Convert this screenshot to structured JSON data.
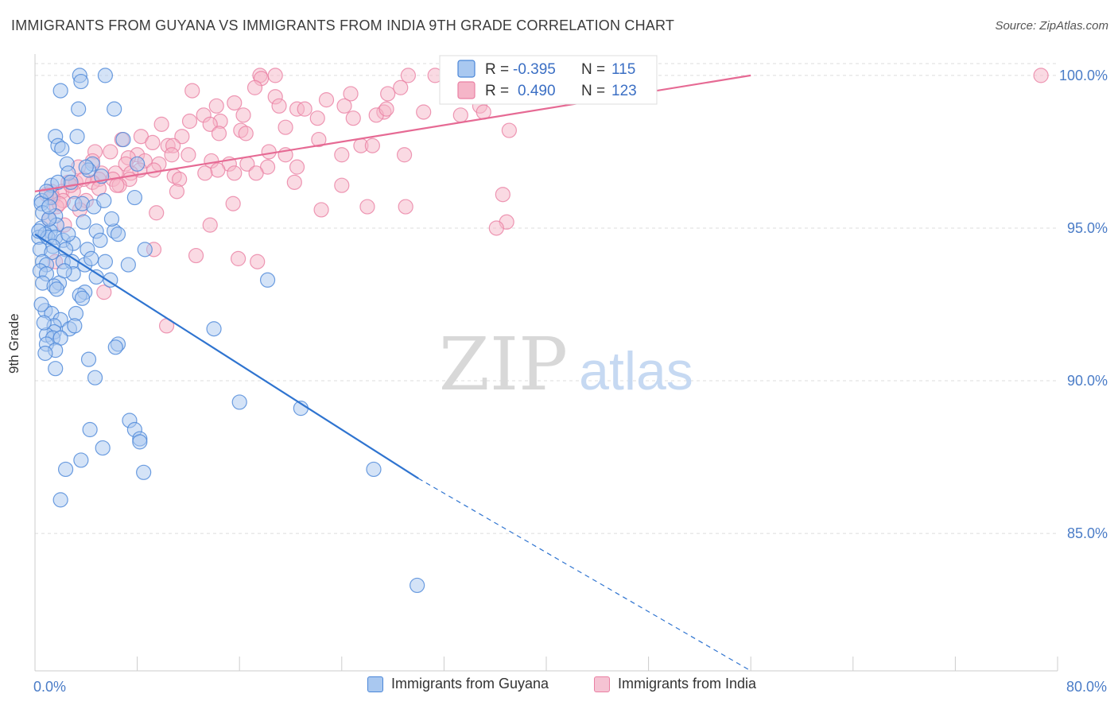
{
  "title": "IMMIGRANTS FROM GUYANA VS IMMIGRANTS FROM INDIA 9TH GRADE CORRELATION CHART",
  "source": "Source: ZipAtlas.com",
  "watermark": {
    "zip": "ZIP",
    "atlas": "atlas"
  },
  "colors": {
    "guyana_fill": "#a9c8f0",
    "guyana_stroke": "#4a86d8",
    "guyana_line": "#2f74d0",
    "india_fill": "#f5b5c8",
    "india_stroke": "#ea80a3",
    "india_line": "#e66a94",
    "grid": "#dddddd",
    "axis_text": "#4a7cc7"
  },
  "legend": {
    "rows": [
      {
        "r_label": "R =",
        "r_value": "-0.395",
        "n_label": "N =",
        "n_value": "115"
      },
      {
        "r_label": "R =",
        "r_value": "0.490",
        "n_label": "N =",
        "n_value": "123"
      }
    ]
  },
  "chart_data": {
    "type": "scatter",
    "title": "IMMIGRANTS FROM GUYANA VS IMMIGRANTS FROM INDIA 9TH GRADE CORRELATION CHART",
    "xlabel": "",
    "ylabel": "9th Grade",
    "xlim": [
      0,
      80
    ],
    "ylim": [
      80.5,
      100.7
    ],
    "x_tick_labels": [
      "0.0%",
      "80.0%"
    ],
    "y_ticks": [
      85,
      90,
      95,
      100
    ],
    "y_tick_labels": [
      "85.0%",
      "90.0%",
      "95.0%",
      "100.0%"
    ],
    "grid": true,
    "legend_position": "top-center",
    "series": [
      {
        "name": "Immigrants from Guyana",
        "r": -0.395,
        "n": 115,
        "trend": {
          "x": [
            0,
            30
          ],
          "y": [
            94.8,
            86.8
          ]
        },
        "trend_extension": {
          "x": [
            30,
            56
          ],
          "y": [
            86.8,
            80.5
          ]
        },
        "points": [
          [
            3.5,
            100.0
          ],
          [
            5.5,
            100.0
          ],
          [
            3.6,
            99.8
          ],
          [
            2.0,
            99.5
          ],
          [
            6.2,
            98.9
          ],
          [
            3.4,
            98.9
          ],
          [
            1.6,
            98.0
          ],
          [
            3.3,
            98.0
          ],
          [
            6.9,
            97.9
          ],
          [
            1.8,
            97.7
          ],
          [
            2.1,
            97.6
          ],
          [
            2.5,
            97.1
          ],
          [
            4.5,
            97.1
          ],
          [
            8.0,
            97.1
          ],
          [
            4.2,
            96.9
          ],
          [
            2.6,
            96.8
          ],
          [
            5.2,
            96.7
          ],
          [
            1.3,
            96.4
          ],
          [
            2.8,
            96.5
          ],
          [
            7.8,
            96.0
          ],
          [
            1.2,
            96.0
          ],
          [
            0.5,
            95.9
          ],
          [
            0.5,
            95.8
          ],
          [
            3.1,
            95.8
          ],
          [
            3.7,
            95.8
          ],
          [
            4.6,
            95.7
          ],
          [
            0.6,
            95.5
          ],
          [
            1.6,
            95.4
          ],
          [
            3.8,
            95.2
          ],
          [
            1.7,
            95.1
          ],
          [
            0.5,
            95.0
          ],
          [
            1.2,
            94.9
          ],
          [
            4.8,
            94.9
          ],
          [
            6.2,
            94.9
          ],
          [
            6.5,
            94.8
          ],
          [
            0.3,
            94.7
          ],
          [
            0.8,
            94.8
          ],
          [
            1.0,
            94.7
          ],
          [
            1.6,
            94.7
          ],
          [
            2.2,
            94.6
          ],
          [
            3.0,
            94.5
          ],
          [
            5.1,
            94.6
          ],
          [
            1.4,
            94.4
          ],
          [
            0.4,
            94.3
          ],
          [
            2.4,
            94.3
          ],
          [
            4.1,
            94.3
          ],
          [
            8.6,
            94.3
          ],
          [
            1.3,
            94.2
          ],
          [
            0.6,
            93.9
          ],
          [
            2.2,
            93.9
          ],
          [
            2.9,
            93.9
          ],
          [
            5.5,
            93.9
          ],
          [
            0.9,
            93.8
          ],
          [
            3.9,
            93.8
          ],
          [
            7.3,
            93.8
          ],
          [
            0.4,
            93.6
          ],
          [
            0.9,
            93.5
          ],
          [
            3.0,
            93.5
          ],
          [
            4.8,
            93.4
          ],
          [
            5.9,
            93.3
          ],
          [
            18.2,
            93.3
          ],
          [
            0.6,
            93.2
          ],
          [
            1.9,
            93.2
          ],
          [
            1.5,
            93.1
          ],
          [
            1.7,
            93.0
          ],
          [
            3.9,
            92.9
          ],
          [
            3.5,
            92.8
          ],
          [
            0.8,
            92.3
          ],
          [
            1.3,
            92.2
          ],
          [
            3.2,
            92.2
          ],
          [
            2.0,
            92.0
          ],
          [
            1.5,
            91.8
          ],
          [
            2.7,
            91.7
          ],
          [
            14.0,
            91.7
          ],
          [
            3.1,
            91.8
          ],
          [
            1.5,
            91.6
          ],
          [
            0.9,
            91.5
          ],
          [
            1.4,
            91.4
          ],
          [
            2.0,
            91.4
          ],
          [
            0.9,
            91.2
          ],
          [
            6.5,
            91.2
          ],
          [
            6.3,
            91.1
          ],
          [
            1.6,
            91.0
          ],
          [
            0.8,
            90.9
          ],
          [
            4.2,
            90.7
          ],
          [
            1.6,
            90.4
          ],
          [
            4.7,
            90.1
          ],
          [
            16.0,
            89.3
          ],
          [
            20.8,
            89.1
          ],
          [
            7.4,
            88.7
          ],
          [
            7.8,
            88.4
          ],
          [
            4.3,
            88.4
          ],
          [
            8.2,
            88.1
          ],
          [
            8.2,
            88.0
          ],
          [
            5.3,
            87.8
          ],
          [
            3.6,
            87.4
          ],
          [
            2.4,
            87.1
          ],
          [
            8.5,
            87.0
          ],
          [
            26.5,
            87.1
          ],
          [
            2.0,
            86.1
          ],
          [
            29.9,
            83.3
          ],
          [
            1.1,
            95.3
          ],
          [
            0.3,
            94.9
          ],
          [
            2.6,
            94.8
          ],
          [
            5.4,
            95.9
          ],
          [
            0.9,
            96.2
          ],
          [
            4.0,
            97.0
          ],
          [
            1.8,
            96.5
          ],
          [
            0.5,
            92.5
          ],
          [
            2.3,
            93.6
          ],
          [
            3.7,
            92.7
          ],
          [
            6.0,
            95.3
          ],
          [
            1.1,
            95.7
          ],
          [
            0.7,
            91.9
          ],
          [
            4.4,
            94.0
          ]
        ]
      },
      {
        "name": "Immigrants from India",
        "r": 0.49,
        "n": 123,
        "trend": {
          "x": [
            0,
            56
          ],
          "y": [
            96.2,
            100.0
          ]
        },
        "points": [
          [
            17.6,
            100.0
          ],
          [
            18.8,
            100.0
          ],
          [
            29.2,
            100.0
          ],
          [
            31.3,
            100.0
          ],
          [
            78.7,
            100.0
          ],
          [
            17.7,
            99.9
          ],
          [
            34.5,
            99.9
          ],
          [
            34.2,
            99.6
          ],
          [
            17.2,
            99.6
          ],
          [
            28.6,
            99.6
          ],
          [
            12.3,
            99.5
          ],
          [
            24.7,
            99.4
          ],
          [
            27.6,
            99.4
          ],
          [
            18.8,
            99.3
          ],
          [
            22.8,
            99.2
          ],
          [
            15.6,
            99.1
          ],
          [
            19.1,
            99.0
          ],
          [
            20.5,
            98.9
          ],
          [
            14.2,
            99.0
          ],
          [
            24.2,
            99.0
          ],
          [
            34.8,
            99.0
          ],
          [
            21.1,
            98.9
          ],
          [
            27.3,
            98.8
          ],
          [
            30.4,
            98.8
          ],
          [
            26.7,
            98.7
          ],
          [
            16.3,
            98.7
          ],
          [
            13.2,
            98.7
          ],
          [
            14.5,
            98.5
          ],
          [
            22.1,
            98.6
          ],
          [
            24.9,
            98.6
          ],
          [
            35.1,
            98.8
          ],
          [
            12.1,
            98.5
          ],
          [
            13.7,
            98.4
          ],
          [
            9.9,
            98.4
          ],
          [
            16.1,
            98.2
          ],
          [
            14.4,
            98.1
          ],
          [
            16.5,
            98.1
          ],
          [
            19.6,
            98.3
          ],
          [
            37.1,
            98.2
          ],
          [
            8.3,
            98.0
          ],
          [
            11.5,
            98.0
          ],
          [
            6.8,
            97.9
          ],
          [
            10.4,
            97.7
          ],
          [
            9.2,
            97.8
          ],
          [
            10.8,
            97.7
          ],
          [
            25.5,
            97.7
          ],
          [
            26.4,
            97.7
          ],
          [
            4.7,
            97.5
          ],
          [
            5.9,
            97.5
          ],
          [
            18.3,
            97.5
          ],
          [
            19.6,
            97.4
          ],
          [
            8.0,
            97.4
          ],
          [
            10.7,
            97.4
          ],
          [
            12.0,
            97.4
          ],
          [
            24.0,
            97.4
          ],
          [
            28.9,
            97.4
          ],
          [
            7.3,
            97.3
          ],
          [
            8.6,
            97.2
          ],
          [
            4.5,
            97.2
          ],
          [
            13.8,
            97.2
          ],
          [
            15.2,
            97.1
          ],
          [
            7.1,
            97.1
          ],
          [
            9.7,
            97.1
          ],
          [
            3.4,
            97.0
          ],
          [
            16.6,
            97.1
          ],
          [
            18.2,
            97.0
          ],
          [
            20.5,
            97.0
          ],
          [
            8.2,
            96.9
          ],
          [
            9.3,
            96.9
          ],
          [
            14.3,
            96.9
          ],
          [
            6.3,
            96.8
          ],
          [
            7.5,
            96.8
          ],
          [
            5.2,
            96.8
          ],
          [
            13.3,
            96.8
          ],
          [
            15.6,
            96.8
          ],
          [
            10.9,
            96.7
          ],
          [
            17.3,
            96.8
          ],
          [
            6.1,
            96.6
          ],
          [
            7.4,
            96.6
          ],
          [
            5.0,
            96.6
          ],
          [
            11.3,
            96.6
          ],
          [
            2.6,
            96.5
          ],
          [
            3.2,
            96.5
          ],
          [
            4.5,
            96.5
          ],
          [
            20.3,
            96.5
          ],
          [
            6.6,
            96.4
          ],
          [
            24.0,
            96.4
          ],
          [
            1.3,
            96.2
          ],
          [
            2.1,
            96.2
          ],
          [
            3.0,
            96.2
          ],
          [
            6.4,
            96.4
          ],
          [
            5.0,
            96.3
          ],
          [
            11.1,
            96.2
          ],
          [
            36.6,
            96.1
          ],
          [
            1.4,
            96.0
          ],
          [
            2.2,
            95.9
          ],
          [
            4.0,
            95.9
          ],
          [
            1.7,
            95.7
          ],
          [
            15.5,
            95.8
          ],
          [
            26.0,
            95.7
          ],
          [
            22.4,
            95.6
          ],
          [
            29.0,
            95.7
          ],
          [
            3.5,
            95.6
          ],
          [
            9.5,
            95.5
          ],
          [
            1.1,
            95.3
          ],
          [
            36.9,
            95.2
          ],
          [
            13.7,
            95.1
          ],
          [
            2.3,
            95.1
          ],
          [
            36.1,
            95.0
          ],
          [
            9.3,
            94.3
          ],
          [
            12.6,
            94.1
          ],
          [
            15.9,
            94.0
          ],
          [
            17.4,
            93.9
          ],
          [
            1.6,
            93.9
          ],
          [
            5.4,
            92.9
          ],
          [
            10.3,
            91.8
          ],
          [
            2.8,
            96.4
          ],
          [
            3.8,
            96.6
          ],
          [
            0.9,
            96.1
          ],
          [
            1.9,
            95.8
          ],
          [
            27.5,
            98.9
          ],
          [
            22.2,
            97.9
          ],
          [
            33.3,
            98.7
          ]
        ]
      }
    ]
  },
  "bottom_legend": [
    {
      "label": "Immigrants from Guyana"
    },
    {
      "label": "Immigrants from India"
    }
  ]
}
